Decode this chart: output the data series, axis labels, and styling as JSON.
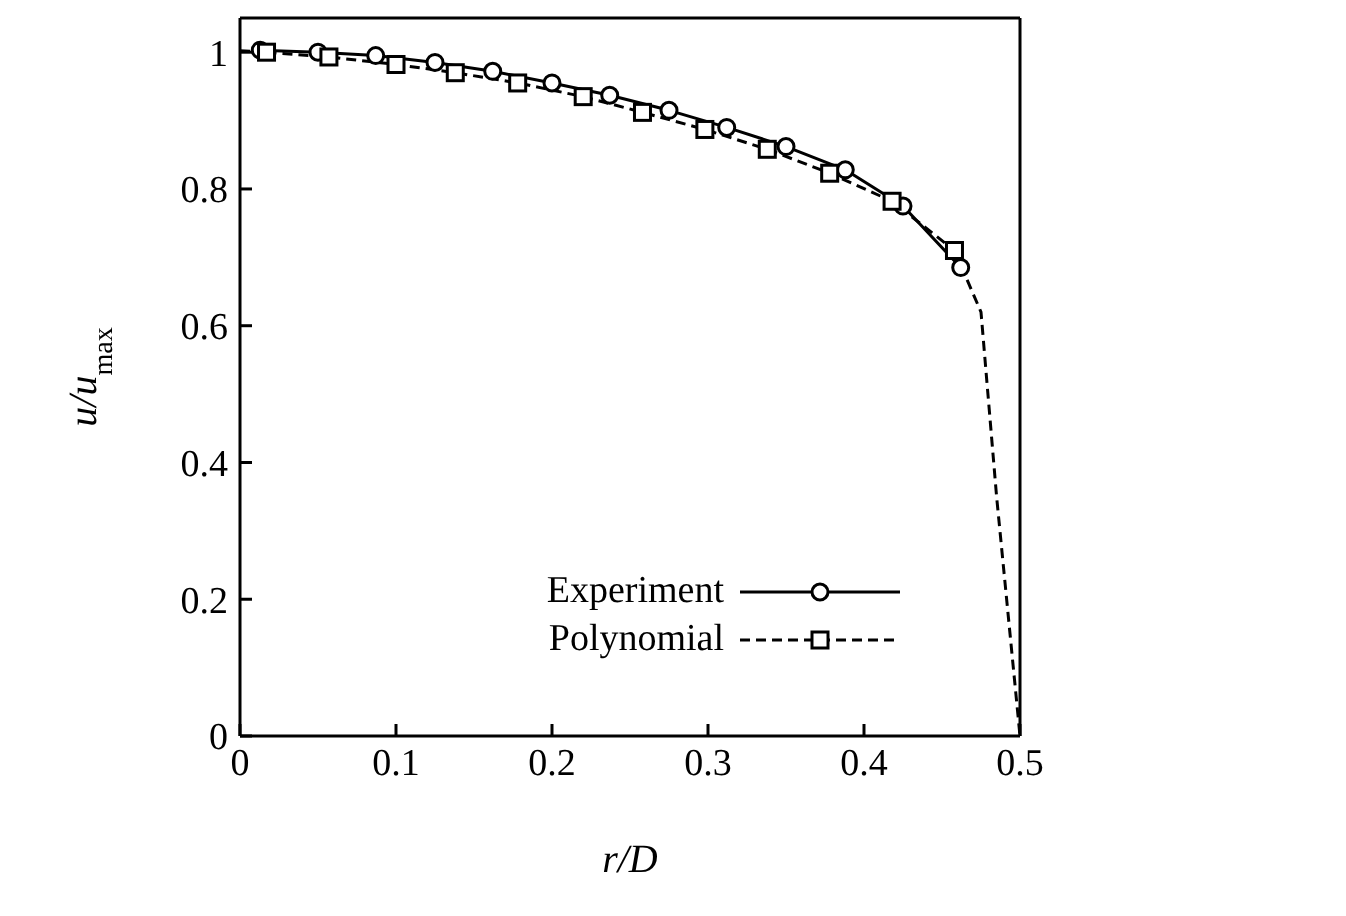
{
  "chart_data": {
    "type": "line",
    "xlabel": "r/D",
    "ylabel": "u/u$_{max}$",
    "xlim": [
      0,
      0.5
    ],
    "xticks": [
      0,
      0.1,
      0.2,
      0.3,
      0.4,
      0.5
    ],
    "ylim": [
      0,
      1.05
    ],
    "yticks": [
      0,
      0.2,
      0.4,
      0.6,
      0.8,
      1
    ],
    "grid": false,
    "legend": "bottom",
    "series": [
      {
        "name": "Experiment",
        "color": "#000000",
        "marker": "circle",
        "line_style": "solid",
        "x": [
          0.013,
          0.05,
          0.087,
          0.125,
          0.162,
          0.2,
          0.237,
          0.275,
          0.312,
          0.35,
          0.388,
          0.425,
          0.462
        ],
        "values": [
          1.003,
          1.0,
          0.995,
          0.985,
          0.972,
          0.955,
          0.937,
          0.915,
          0.89,
          0.862,
          0.828,
          0.775,
          0.685
        ]
      },
      {
        "name": "Polynomial",
        "color": "#000000",
        "marker": "square",
        "line_style": "dashed",
        "x": [
          0.017,
          0.057,
          0.1,
          0.138,
          0.178,
          0.22,
          0.258,
          0.298,
          0.338,
          0.378,
          0.418,
          0.458
        ],
        "values": [
          1.0,
          0.993,
          0.982,
          0.97,
          0.955,
          0.935,
          0.912,
          0.887,
          0.858,
          0.823,
          0.782,
          0.71
        ]
      },
      {
        "color": "#000000",
        "marker": "none",
        "line_style": "dashed",
        "x": [
          0.0,
          0.017
        ],
        "values": [
          1.002,
          1.0
        ]
      },
      {
        "color": "#000000",
        "marker": "none",
        "line_style": "dashed",
        "x": [
          0.458,
          0.475,
          0.485,
          0.5
        ],
        "values": [
          0.71,
          0.62,
          0.35,
          0.0
        ]
      }
    ]
  }
}
